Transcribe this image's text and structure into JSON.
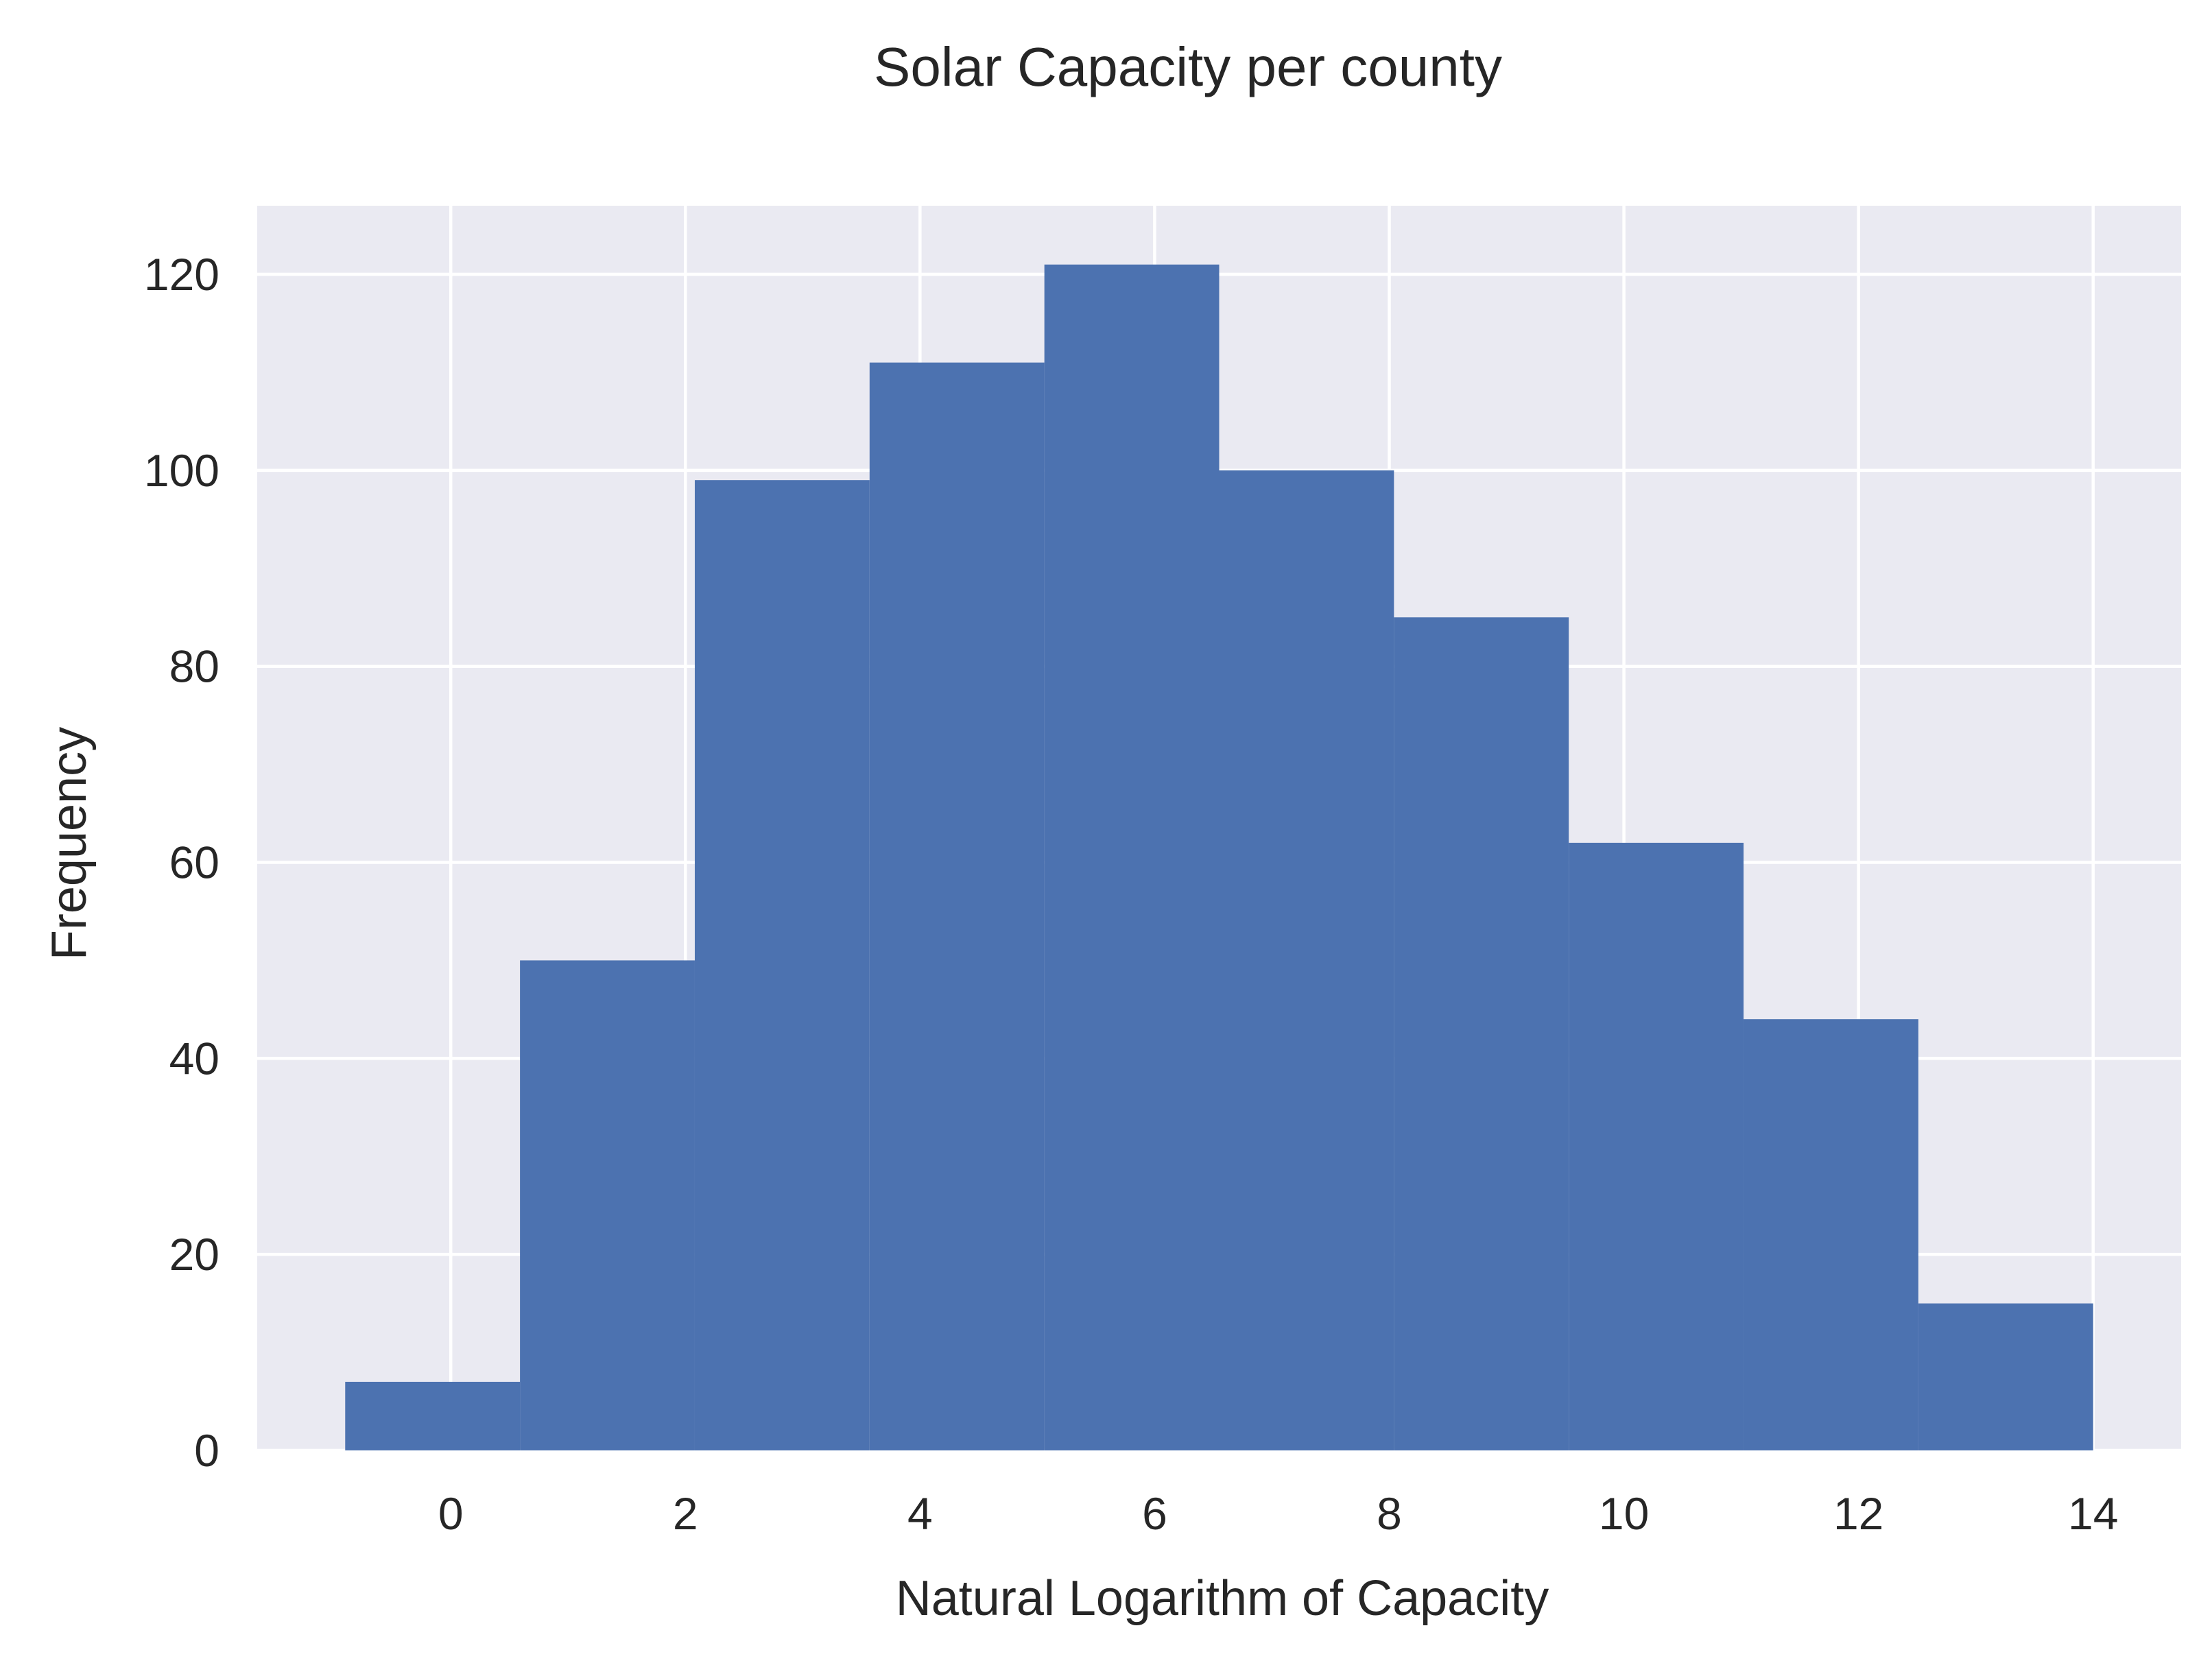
{
  "chart_data": {
    "type": "bar",
    "title": "Solar Capacity per county",
    "xlabel": "Natural Logarithm of Capacity",
    "ylabel": "Frequency",
    "bin_edges": [
      -0.9,
      0.59,
      2.08,
      3.57,
      5.06,
      6.55,
      8.04,
      9.53,
      11.02,
      12.51,
      14.0
    ],
    "values": [
      7,
      50,
      99,
      111,
      121,
      100,
      85,
      62,
      44,
      15
    ],
    "xlim": [
      -1.65,
      14.75
    ],
    "ylim": [
      0,
      127
    ],
    "xticks": [
      0,
      2,
      4,
      6,
      8,
      10,
      12,
      14
    ],
    "yticks": [
      0,
      20,
      40,
      60,
      80,
      100,
      120
    ],
    "grid": true,
    "colors": {
      "bar": "#4c72b0",
      "plot_background": "#eaeaf2",
      "grid": "#ffffff",
      "text": "#262626"
    }
  }
}
